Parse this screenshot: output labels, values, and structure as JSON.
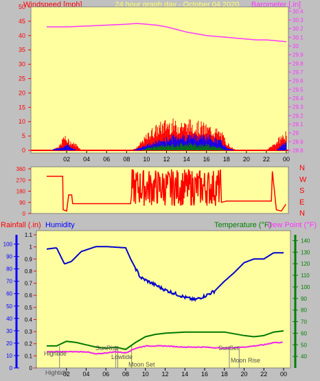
{
  "header": {
    "windspeed_label": "Windspeed [mph]",
    "title": "24 hour graph day - October 04 2020",
    "barometer_label": "Barometer [.in]"
  },
  "labels": {
    "rainfall": "Rainfall (.in)",
    "humidity": "Humidity",
    "temperature": "Temperature (°F)",
    "dewpoint": "Dew Point (°F)",
    "compass": [
      "N",
      "W",
      "S",
      "E",
      "N"
    ],
    "events": {
      "hightide_1": "Hightide",
      "hightide_2": "Hightide",
      "sunrise": "SunRise",
      "lowtide": "Lowtide",
      "moonset": "Moon Set",
      "sunset": "SunSet",
      "moonrise": "Moon Rise"
    }
  },
  "colors": {
    "plot_bg": "#ffffa0",
    "frame_bg": "#c0c0c0",
    "wind": "#ff0000",
    "gust_blue": "#0000ff",
    "avg_green": "#008000",
    "barometer": "#ff33ff",
    "humidity": "#0000cc",
    "temperature": "#007700",
    "dewpoint": "#ee22ee",
    "axis_red": "#ff0000",
    "axis_green": "#008000",
    "axis_blue": "#0000ff"
  },
  "chart_data": [
    {
      "type": "line",
      "name": "wind-barometer",
      "x_ticks": [
        "02",
        "04",
        "06",
        "08",
        "10",
        "12",
        "14",
        "16",
        "18",
        "20",
        "22",
        "00"
      ],
      "y_left_ticks": [
        "0",
        "5",
        "10",
        "15",
        "20",
        "25",
        "30",
        "35",
        "40",
        "45",
        "50"
      ],
      "ylim_left": [
        0,
        50
      ],
      "y_right_ticks": [
        "28.8",
        "28.9",
        "29",
        "29.1",
        "29.2",
        "29.3",
        "29.4",
        "29.5",
        "29.6",
        "29.7",
        "29.8",
        "29.9",
        "30",
        "30.1",
        "30.2",
        "30.3",
        "30.4"
      ],
      "ylim_right": [
        28.8,
        30.45
      ],
      "barometer": {
        "x": [
          0,
          2,
          4,
          6,
          8,
          9,
          10,
          11,
          12,
          13,
          14,
          15,
          16,
          17,
          18,
          19,
          20,
          21,
          22,
          23,
          24
        ],
        "y": [
          30.22,
          30.22,
          30.23,
          30.24,
          30.25,
          30.26,
          30.25,
          30.24,
          30.22,
          30.19,
          30.16,
          30.14,
          30.12,
          30.11,
          30.1,
          30.09,
          30.08,
          30.07,
          30.07,
          30.06,
          30.05
        ]
      },
      "wind_gust": {
        "x": [
          0,
          0.5,
          1.4,
          1.7,
          2,
          2.4,
          3,
          3.5,
          5,
          7,
          8.5,
          9,
          9.5,
          10,
          10.5,
          11,
          11.5,
          12,
          12.5,
          13,
          13.5,
          14,
          14.5,
          15,
          15.5,
          16,
          16.5,
          17,
          17.5,
          18,
          18.5,
          19,
          20,
          22,
          23,
          23.5,
          24
        ],
        "y": [
          0,
          0,
          2,
          5,
          4,
          3,
          2,
          0,
          0,
          0,
          0,
          1,
          3,
          5,
          7,
          8,
          9,
          10,
          10,
          9,
          10,
          9,
          10,
          9,
          9,
          8,
          8,
          7,
          6,
          3,
          1,
          0,
          0,
          0,
          3,
          5,
          6
        ]
      },
      "wind_avg": {
        "x": [
          0,
          1.5,
          2,
          3,
          8.5,
          9.5,
          10,
          11,
          12,
          13,
          14,
          15,
          16,
          17,
          17.5,
          18,
          19,
          23,
          23.5,
          24
        ],
        "y": [
          0,
          1,
          2,
          0,
          0,
          1,
          2,
          3,
          4,
          5,
          5,
          5,
          5,
          4,
          3,
          1,
          0,
          0,
          2,
          3
        ]
      },
      "wind_low": {
        "x": [
          0,
          9.5,
          10,
          11,
          12,
          13,
          14,
          15,
          16,
          17,
          18,
          24
        ],
        "y": [
          0,
          0,
          1,
          1.5,
          2,
          2,
          2.5,
          2,
          2,
          1.5,
          0,
          0
        ]
      }
    },
    {
      "type": "line",
      "name": "wind-direction",
      "y_ticks": [
        "0",
        "90",
        "180",
        "270",
        "360"
      ],
      "ylim": [
        0,
        360
      ],
      "direction": {
        "x": [
          0,
          1.6,
          1.65,
          2,
          2.2,
          2.5,
          2.6,
          8.4,
          8.5,
          9.5,
          10,
          11,
          12,
          12.6,
          13,
          14,
          14.5,
          15,
          16,
          17,
          18,
          22.5,
          22.6,
          23,
          23.5,
          24
        ],
        "y": [
          300,
          300,
          30,
          20,
          150,
          150,
          80,
          80,
          150,
          150,
          100,
          80,
          120,
          50,
          200,
          150,
          40,
          180,
          100,
          80,
          100,
          100,
          340,
          30,
          20,
          80
        ]
      }
    },
    {
      "type": "line",
      "name": "humidity-temperature",
      "y_rain_ticks": [
        "0",
        "0.1",
        "0.2",
        "0.3",
        "0.4",
        "0.5",
        "0.6",
        "0.7",
        "0.8",
        "0.9",
        "1",
        "1.1"
      ],
      "ylim_rain": [
        0,
        1.1
      ],
      "y_humidity_ticks": [
        "0",
        "10",
        "20",
        "30",
        "40",
        "50",
        "60",
        "70",
        "80",
        "90",
        "100"
      ],
      "ylim_humidity": [
        0,
        100
      ],
      "y_temp_ticks": [
        "40",
        "50",
        "60",
        "70",
        "80",
        "90",
        "100",
        "110",
        "120",
        "130",
        "140"
      ],
      "ylim_temp": [
        30,
        145
      ],
      "x_ticks": [
        "02",
        "04",
        "06",
        "08",
        "10",
        "12",
        "14",
        "16",
        "18",
        "20",
        "22",
        "00"
      ],
      "humidity": {
        "x": [
          0,
          1,
          1.8,
          2.5,
          3.5,
          5,
          6,
          8,
          8.5,
          9.5,
          10,
          11,
          12,
          13,
          14,
          15,
          16,
          17,
          18,
          19,
          20,
          21,
          22,
          23,
          24
        ],
        "y": [
          96,
          97,
          84,
          86,
          94,
          98,
          98,
          97,
          88,
          73,
          71,
          67,
          63,
          60,
          57,
          55,
          58,
          62,
          70,
          77,
          85,
          88,
          88,
          93,
          93
        ]
      },
      "temperature": {
        "x": [
          0,
          1,
          2,
          3,
          4,
          5,
          6,
          7,
          8,
          9,
          10,
          11,
          12,
          14,
          16,
          18,
          20,
          21,
          22,
          23,
          24
        ],
        "y": [
          49,
          49,
          53,
          52,
          50,
          48,
          47,
          48,
          46,
          52,
          57,
          59,
          60,
          61,
          61,
          61,
          58,
          57,
          58,
          61,
          62
        ]
      },
      "dewpoint": {
        "x": [
          0,
          1,
          2,
          3,
          4,
          5,
          6,
          7,
          8,
          9,
          10,
          11,
          12,
          14,
          16,
          18,
          20,
          21,
          22,
          23,
          24
        ],
        "y": [
          44,
          44,
          44,
          44,
          44,
          42,
          43,
          44,
          43,
          47,
          49,
          49,
          49,
          48,
          48,
          47,
          48,
          49,
          50,
          52,
          52
        ]
      },
      "events": {
        "hightide_1": 1.3,
        "sunrise": 7.0,
        "lowtide": 7.2,
        "moonset": 8.6,
        "sunset": 18.5,
        "moonrise": 19.5
      }
    }
  ]
}
